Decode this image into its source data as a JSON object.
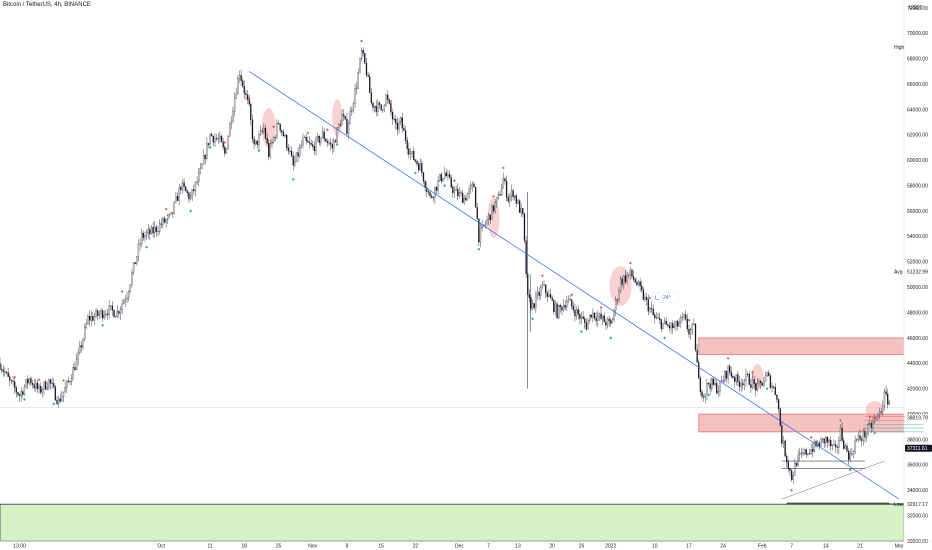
{
  "chart_data": {
    "type": "candlestick",
    "title": "Bitcoin / TetherUS, 4h, BINANCE",
    "currency": "USDT",
    "ylim": [
      30000,
      72000
    ],
    "y_ticks": [
      30000,
      32000,
      34000,
      36000,
      38000,
      40000,
      42000,
      44000,
      46000,
      48000,
      50000,
      52000,
      54000,
      56000,
      58000,
      60000,
      62000,
      64000,
      66000,
      68000,
      70000,
      72000
    ],
    "x_ticks": [
      {
        "label": "13:00",
        "day": -29
      },
      {
        "label": "Oct",
        "day": 0
      },
      {
        "label": "11",
        "day": 10
      },
      {
        "label": "18",
        "day": 17
      },
      {
        "label": "25",
        "day": 24
      },
      {
        "label": "Nov",
        "day": 31
      },
      {
        "label": "8",
        "day": 38
      },
      {
        "label": "15",
        "day": 45
      },
      {
        "label": "22",
        "day": 52
      },
      {
        "label": "Dec",
        "day": 61
      },
      {
        "label": "7",
        "day": 67
      },
      {
        "label": "13",
        "day": 73
      },
      {
        "label": "20",
        "day": 80
      },
      {
        "label": "26",
        "day": 86
      },
      {
        "label": "2022",
        "day": 92
      },
      {
        "label": "10",
        "day": 101
      },
      {
        "label": "17",
        "day": 108
      },
      {
        "label": "24",
        "day": 115
      },
      {
        "label": "Feb",
        "day": 123
      },
      {
        "label": "7",
        "day": 129
      },
      {
        "label": "14",
        "day": 136
      },
      {
        "label": "21",
        "day": 143
      },
      {
        "label": "Mar",
        "day": 151
      }
    ],
    "x_domain": [
      -33,
      152
    ],
    "price_path": [
      [
        -33,
        44000
      ],
      [
        -31,
        42500
      ],
      [
        -29,
        41500
      ],
      [
        -27,
        42800
      ],
      [
        -25,
        41800
      ],
      [
        -23,
        42600
      ],
      [
        -21,
        41000
      ],
      [
        -19,
        42500
      ],
      [
        -17,
        44500
      ],
      [
        -15,
        47500
      ],
      [
        -13,
        47800
      ],
      [
        -11,
        48200
      ],
      [
        -9,
        48000
      ],
      [
        -7,
        49500
      ],
      [
        -6,
        51000
      ],
      [
        -4,
        54000
      ],
      [
        -2,
        54300
      ],
      [
        0,
        55000
      ],
      [
        2,
        55500
      ],
      [
        4,
        58000
      ],
      [
        6,
        57000
      ],
      [
        8,
        59000
      ],
      [
        10,
        62000
      ],
      [
        12,
        61500
      ],
      [
        13,
        60500
      ],
      [
        15,
        65000
      ],
      [
        16,
        67000
      ],
      [
        18,
        64000
      ],
      [
        19,
        61000
      ],
      [
        21,
        62500
      ],
      [
        22,
        60500
      ],
      [
        24,
        63000
      ],
      [
        26,
        61000
      ],
      [
        27,
        59500
      ],
      [
        29,
        61500
      ],
      [
        31,
        61000
      ],
      [
        33,
        62000
      ],
      [
        35,
        61000
      ],
      [
        37,
        63500
      ],
      [
        38,
        62500
      ],
      [
        40,
        66000
      ],
      [
        41,
        68500
      ],
      [
        42,
        67000
      ],
      [
        43,
        64500
      ],
      [
        45,
        64000
      ],
      [
        46,
        65000
      ],
      [
        48,
        62500
      ],
      [
        49,
        63000
      ],
      [
        51,
        60500
      ],
      [
        53,
        59500
      ],
      [
        55,
        57000
      ],
      [
        57,
        58500
      ],
      [
        58,
        59000
      ],
      [
        60,
        57500
      ],
      [
        62,
        57000
      ],
      [
        64,
        58000
      ],
      [
        65,
        54000
      ],
      [
        67,
        55500
      ],
      [
        69,
        57000
      ],
      [
        70,
        58500
      ],
      [
        71,
        57000
      ],
      [
        72,
        57500
      ],
      [
        74,
        55500
      ],
      [
        75,
        49000
      ],
      [
        76,
        48500
      ],
      [
        78,
        50000
      ],
      [
        79,
        49500
      ],
      [
        81,
        48000
      ],
      [
        83,
        49000
      ],
      [
        85,
        48000
      ],
      [
        87,
        47000
      ],
      [
        88,
        48000
      ],
      [
        90,
        47500
      ],
      [
        92,
        47000
      ],
      [
        94,
        50500
      ],
      [
        96,
        51000
      ],
      [
        97,
        50500
      ],
      [
        99,
        49000
      ],
      [
        101,
        47500
      ],
      [
        103,
        47000
      ],
      [
        105,
        46800
      ],
      [
        107,
        47500
      ],
      [
        108,
        46500
      ],
      [
        109,
        46700
      ],
      [
        110,
        42500
      ],
      [
        111,
        41500
      ],
      [
        112,
        42500
      ],
      [
        114,
        42000
      ],
      [
        116,
        43500
      ],
      [
        118,
        42500
      ],
      [
        120,
        42800
      ],
      [
        122,
        42000
      ],
      [
        124,
        43000
      ],
      [
        126,
        41500
      ],
      [
        127,
        38000
      ],
      [
        128,
        36500
      ],
      [
        129,
        35000
      ],
      [
        130,
        36300
      ],
      [
        132,
        37000
      ],
      [
        134,
        37500
      ],
      [
        136,
        38000
      ],
      [
        138,
        37000
      ],
      [
        139,
        38600
      ],
      [
        140,
        37300
      ],
      [
        141,
        36600
      ],
      [
        142,
        37800
      ],
      [
        143,
        38100
      ],
      [
        144,
        38400
      ],
      [
        145,
        38900
      ],
      [
        146,
        39500
      ],
      [
        147,
        40000
      ],
      [
        148,
        41400
      ],
      [
        149,
        41000
      ]
    ],
    "annotations": [
      {
        "label": "High",
        "value": "68900"
      },
      {
        "label": "Avg",
        "value": "51232.99"
      },
      {
        "label": "Low",
        "value": "32917.17"
      },
      {
        "label": "price_tag_1",
        "value": "38819.78"
      },
      {
        "label": "price_tag_2",
        "value": "37311.61"
      },
      {
        "label": "tool_label",
        "value": "-24°"
      }
    ],
    "zones": [
      {
        "kind": "supply",
        "from": 46000,
        "to": 44700
      },
      {
        "kind": "supply",
        "from": 40000,
        "to": 38600
      },
      {
        "kind": "demand",
        "from": 32900,
        "to": 30000
      }
    ],
    "trendline": {
      "start": [
        18,
        67000
      ],
      "end": [
        151,
        33300
      ]
    },
    "colors": {
      "up": "#26a69a",
      "down": "#ef5350",
      "candle": "#131722",
      "zone_red": "#ef9a9a",
      "zone_green": "#ccf0b8",
      "trend": "#2962ff"
    }
  }
}
